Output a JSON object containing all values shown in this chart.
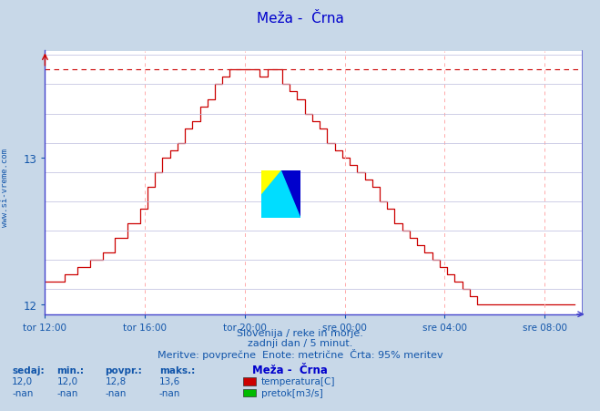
{
  "title": "Meža -  Črna",
  "title_color": "#0000cc",
  "bg_color": "#c8d8e8",
  "plot_bg_color": "#ffffff",
  "line_color": "#cc0000",
  "grid_color_h": "#ccccdd",
  "grid_color_v": "#ffbbbb",
  "axis_color": "#4444cc",
  "text_color": "#1155aa",
  "ylabel_text": "www.si-vreme.com",
  "xlabel_ticks": [
    "tor 12:00",
    "tor 16:00",
    "tor 20:00",
    "sre 00:00",
    "sre 04:00",
    "sre 08:00"
  ],
  "tick_positions_x": [
    0,
    4,
    8,
    12,
    16,
    20
  ],
  "yticks": [
    12,
    13
  ],
  "ylim_min": 11.93,
  "ylim_max": 13.73,
  "xlim_min": 0,
  "xlim_max": 21.5,
  "ymax_line": 13.6,
  "footer_lines": [
    "Slovenija / reke in morje.",
    "zadnji dan / 5 minut.",
    "Meritve: povprečne  Enote: metrične  Črta: 95% meritev"
  ],
  "stats_headers": [
    "sedaj:",
    "min.:",
    "povpr.:",
    "maks.:"
  ],
  "stats_row1": [
    "12,0",
    "12,0",
    "12,8",
    "13,6"
  ],
  "stats_row2": [
    "-nan",
    "-nan",
    "-nan",
    "-nan"
  ],
  "legend_station": "Meža -  Črna",
  "legend_items": [
    {
      "label": "temperatura[C]",
      "color": "#cc0000"
    },
    {
      "label": "pretok[m3/s]",
      "color": "#00bb00"
    }
  ],
  "temp_x": [
    0.0,
    0.5,
    0.8,
    1.3,
    1.8,
    2.3,
    2.8,
    3.3,
    3.8,
    4.1,
    4.4,
    4.7,
    5.0,
    5.3,
    5.6,
    5.9,
    6.2,
    6.5,
    6.8,
    7.1,
    7.4,
    7.7,
    8.0,
    8.3,
    8.6,
    8.9,
    8.9,
    9.2,
    9.5,
    9.5,
    9.8,
    10.1,
    10.4,
    10.7,
    11.0,
    11.3,
    11.6,
    11.9,
    12.2,
    12.5,
    12.8,
    13.1,
    13.4,
    13.7,
    14.0,
    14.3,
    14.6,
    14.9,
    15.2,
    15.5,
    15.8,
    16.1,
    16.4,
    16.7,
    17.0,
    17.3,
    17.6,
    17.9,
    18.2,
    18.5,
    18.8,
    19.1,
    19.4,
    19.7,
    20.0,
    20.3,
    20.6,
    20.9,
    21.2
  ],
  "temp_y": [
    12.15,
    12.15,
    12.2,
    12.25,
    12.3,
    12.35,
    12.45,
    12.55,
    12.65,
    12.8,
    12.9,
    13.0,
    13.05,
    13.1,
    13.2,
    13.25,
    13.35,
    13.4,
    13.5,
    13.55,
    13.6,
    13.6,
    13.6,
    13.6,
    13.55,
    13.55,
    13.6,
    13.6,
    13.55,
    13.5,
    13.45,
    13.4,
    13.3,
    13.25,
    13.2,
    13.1,
    13.05,
    13.0,
    12.95,
    12.9,
    12.85,
    12.8,
    12.7,
    12.65,
    12.55,
    12.5,
    12.45,
    12.4,
    12.35,
    12.3,
    12.25,
    12.2,
    12.15,
    12.1,
    12.05,
    12.0,
    12.0,
    12.0,
    12.0,
    12.0,
    12.0,
    12.0,
    12.0,
    12.0,
    12.0,
    12.0,
    12.0,
    12.0,
    12.0
  ]
}
